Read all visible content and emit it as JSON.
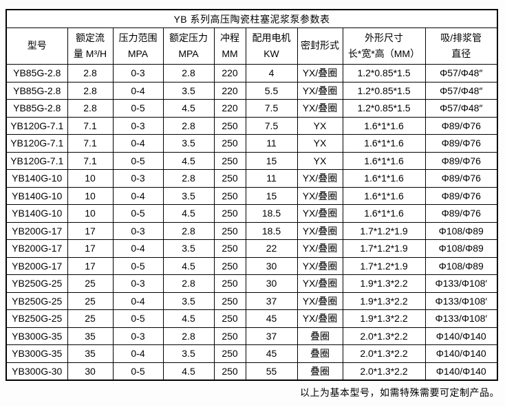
{
  "colors": {
    "border": "#000000",
    "text": "#000000",
    "table_background": "#ffffff",
    "page_background": "#fdfdfd"
  },
  "table": {
    "title": "YB 系列高压陶瓷柱塞泥浆泵参数表",
    "columns": [
      {
        "lines": [
          "型号"
        ]
      },
      {
        "lines": [
          "额定流",
          "量 M³/H"
        ]
      },
      {
        "lines": [
          "压力范围",
          "MPA"
        ]
      },
      {
        "lines": [
          "额定压力",
          "MPA"
        ]
      },
      {
        "lines": [
          "冲程",
          "MM"
        ]
      },
      {
        "lines": [
          "配用电机",
          "KW"
        ]
      },
      {
        "lines": [
          "密封形式"
        ]
      },
      {
        "lines": [
          "外形尺寸",
          "长*宽*高（MM）"
        ]
      },
      {
        "lines": [
          "吸/排浆管",
          "直径"
        ]
      }
    ],
    "rows": [
      [
        "YB85G-2.8",
        "2.8",
        "0-3",
        "2.8",
        "220",
        "4",
        "YX/叠圈",
        "1.2*0.85*1.5",
        "Φ57/Φ48″"
      ],
      [
        "YB85G-2.8",
        "2.8",
        "0-4",
        "3.5",
        "220",
        "5.5",
        "YX/叠圈",
        "1.2*0.85*1.5",
        "Φ57/Φ48″"
      ],
      [
        "YB85G-2.8",
        "2.8",
        "0-5",
        "4.5",
        "220",
        "7.5",
        "YX/叠圈",
        "1.2*0.85*1.5",
        "Φ57/Φ48″"
      ],
      [
        "YB120G-7.1",
        "7.1",
        "0-3",
        "2.8",
        "250",
        "7.5",
        "YX",
        "1.6*1*1.6",
        "Φ89/Φ76"
      ],
      [
        "YB120G-7.1",
        "7.1",
        "0-4",
        "3.5",
        "250",
        "11",
        "YX",
        "1.6*1*1.6",
        "Φ89/Φ76"
      ],
      [
        "YB120G-7.1",
        "7.1",
        "0-5",
        "4.5",
        "250",
        "15",
        "YX",
        "1.6*1*1.6",
        "Φ89/Φ76"
      ],
      [
        "YB140G-10",
        "10",
        "0-3",
        "2.8",
        "250",
        "11",
        "YX/叠圈",
        "1.6*1*1.6",
        "Φ89/Φ76"
      ],
      [
        "YB140G-10",
        "10",
        "0-4",
        "3.5",
        "250",
        "15",
        "YX/叠圈",
        "1.6*1*1.6",
        "Φ89/Φ76"
      ],
      [
        "YB140G-10",
        "10",
        "0-5",
        "4.5",
        "250",
        "18.5",
        "YX/叠圈",
        "1.6*1*1.6",
        "Φ89/Φ76"
      ],
      [
        "YB200G-17",
        "17",
        "0-3",
        "2.8",
        "250",
        "18.5",
        "YX/叠圈",
        "1.7*1.2*1.9",
        "Φ108/Φ89"
      ],
      [
        "YB200G-17",
        "17",
        "0-4",
        "3.5",
        "250",
        "22",
        "YX/叠圈",
        "1.7*1.2*1.9",
        "Φ108/Φ89"
      ],
      [
        "YB200G-17",
        "17",
        "0-5",
        "4.5",
        "250",
        "30",
        "YX/叠圈",
        "1.7*1.2*1.9",
        "Φ108/Φ89"
      ],
      [
        "YB250G-25",
        "25",
        "0-3",
        "2.8",
        "250",
        "30",
        "YX/叠圈",
        "1.9*1.3*2.2",
        "Φ133/Φ108′"
      ],
      [
        "YB250G-25",
        "25",
        "0-4",
        "3.5",
        "250",
        "37",
        "YX/叠圈",
        "1.9*1.3*2.2",
        "Φ133/Φ108′"
      ],
      [
        "YB250G-25",
        "25",
        "0-5",
        "4.5",
        "250",
        "45",
        "YX/叠圈",
        "1.9*1.3*2.2",
        "Φ133/Φ108′"
      ],
      [
        "YB300G-35",
        "35",
        "0-3",
        "2.8",
        "250",
        "37",
        "叠圈",
        "2.0*1.3*2.2",
        "Φ140/Φ140"
      ],
      [
        "YB300G-35",
        "35",
        "0-4",
        "3.5",
        "250",
        "45",
        "叠圈",
        "2.0*1.3*2.2",
        "Φ140/Φ140"
      ],
      [
        "YB300G-30",
        "30",
        "0-5",
        "4.5",
        "250",
        "55",
        "叠圈",
        "2.0*1.3*2.2",
        "Φ140/Φ140"
      ]
    ],
    "footer": "以上为基本型号，如需特殊需要可定制产品。"
  }
}
